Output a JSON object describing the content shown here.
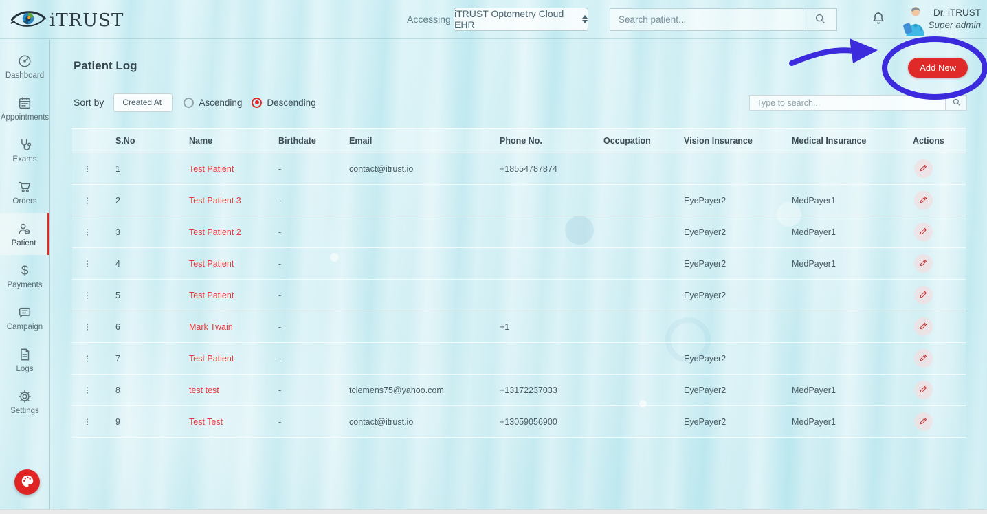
{
  "header": {
    "logo_text": "iTRUST",
    "accessing_label": "Accessing",
    "org_selector_value": "iTRUST Optometry Cloud EHR",
    "patient_search_placeholder": "Search patient...",
    "user_name": "Dr. iTRUST",
    "user_role": "Super admin"
  },
  "sidebar": {
    "items": [
      {
        "label": "Dashboard",
        "icon": "dashboard-icon",
        "active": false
      },
      {
        "label": "Appointments",
        "icon": "appointments-icon",
        "active": false
      },
      {
        "label": "Exams",
        "icon": "exams-icon",
        "active": false
      },
      {
        "label": "Orders",
        "icon": "orders-icon",
        "active": false
      },
      {
        "label": "Patient",
        "icon": "patient-icon",
        "active": true
      },
      {
        "label": "Payments",
        "icon": "payments-icon",
        "active": false
      },
      {
        "label": "Campaign",
        "icon": "campaign-icon",
        "active": false
      },
      {
        "label": "Logs",
        "icon": "logs-icon",
        "active": false
      },
      {
        "label": "Settings",
        "icon": "settings-icon",
        "active": false
      }
    ]
  },
  "page": {
    "title": "Patient Log",
    "add_new_label": "Add New",
    "sort": {
      "label": "Sort by",
      "field_value": "Created At",
      "ascending_label": "Ascending",
      "descending_label": "Descending",
      "selected": "Descending"
    },
    "table_search_placeholder": "Type to search..."
  },
  "table": {
    "columns": [
      "S.No",
      "Name",
      "Birthdate",
      "Email",
      "Phone No.",
      "Occupation",
      "Vision Insurance",
      "Medical Insurance",
      "Actions"
    ],
    "rows": [
      {
        "sno": "1",
        "name": "Test Patient",
        "birthdate": "-",
        "email": "contact@itrust.io",
        "phone": "+18554787874",
        "occupation": "",
        "vision": "",
        "medical": ""
      },
      {
        "sno": "2",
        "name": "Test Patient 3",
        "birthdate": "-",
        "email": "",
        "phone": "",
        "occupation": "",
        "vision": "EyePayer2",
        "medical": "MedPayer1"
      },
      {
        "sno": "3",
        "name": "Test Patient 2",
        "birthdate": "-",
        "email": "",
        "phone": "",
        "occupation": "",
        "vision": "EyePayer2",
        "medical": "MedPayer1"
      },
      {
        "sno": "4",
        "name": "Test Patient",
        "birthdate": "-",
        "email": "",
        "phone": "",
        "occupation": "",
        "vision": "EyePayer2",
        "medical": "MedPayer1"
      },
      {
        "sno": "5",
        "name": "Test Patient",
        "birthdate": "-",
        "email": "",
        "phone": "",
        "occupation": "",
        "vision": "EyePayer2",
        "medical": ""
      },
      {
        "sno": "6",
        "name": "Mark Twain",
        "birthdate": "-",
        "email": "",
        "phone": "+1",
        "occupation": "",
        "vision": "",
        "medical": ""
      },
      {
        "sno": "7",
        "name": "Test Patient",
        "birthdate": "-",
        "email": "",
        "phone": "",
        "occupation": "",
        "vision": "EyePayer2",
        "medical": ""
      },
      {
        "sno": "8",
        "name": "test test",
        "birthdate": "-",
        "email": "tclemens75@yahoo.com",
        "phone": "+13172237033",
        "occupation": "",
        "vision": "EyePayer2",
        "medical": "MedPayer1"
      },
      {
        "sno": "9",
        "name": "Test Test",
        "birthdate": "-",
        "email": "contact@itrust.io",
        "phone": "+13059056900",
        "occupation": "",
        "vision": "EyePayer2",
        "medical": "MedPayer1"
      }
    ]
  },
  "colors": {
    "primary_red": "#e02a2a",
    "patient_name_red": "#e6393a",
    "annotation_purple": "#3b2bdd"
  }
}
